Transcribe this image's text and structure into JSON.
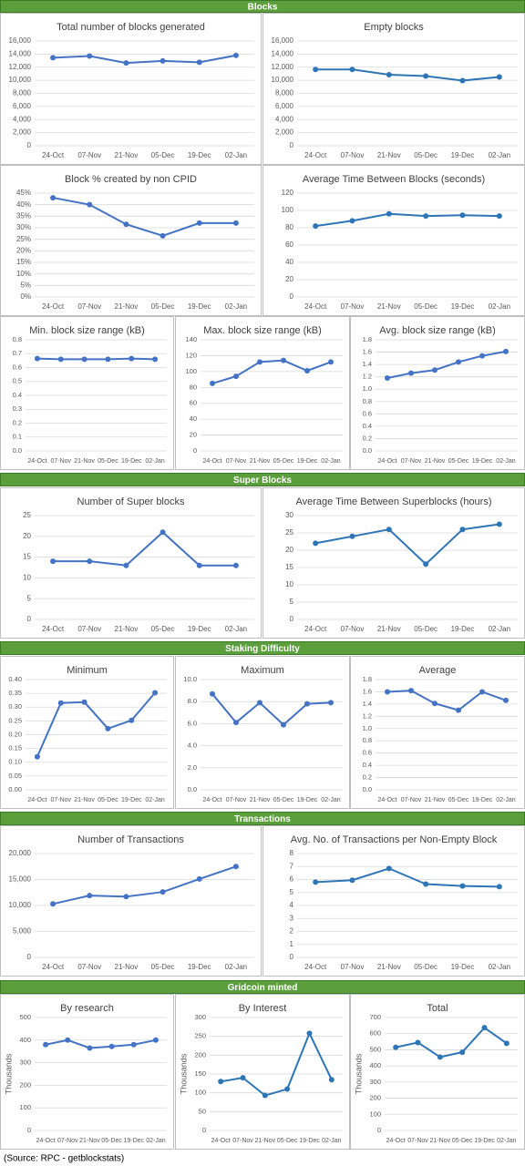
{
  "sections": [
    "Blocks",
    "Super Blocks",
    "Staking Difficulty",
    "Transactions",
    "Gridcoin minted"
  ],
  "source": "(Source: RPC - getblockstats)",
  "chart_data": [
    {
      "type": "line",
      "title": "Total number of blocks generated",
      "categories": [
        "24-Oct",
        "07-Nov",
        "21-Nov",
        "05-Dec",
        "19-Dec",
        "02-Jan"
      ],
      "values": [
        13450,
        13700,
        12650,
        12950,
        12750,
        13800
      ],
      "color": "#4472c4",
      "ylim": [
        0,
        16000
      ],
      "yticks": [
        0,
        {
          "value": 2000,
          "label": "2,000"
        },
        {
          "value": 4000,
          "label": "4,000"
        },
        {
          "value": 6000,
          "label": "6,000"
        },
        {
          "value": 8000,
          "label": "8,000"
        },
        {
          "value": 10000,
          "label": "10,000"
        },
        {
          "value": 12000,
          "label": "12,000"
        },
        {
          "value": 14000,
          "label": "14,000"
        },
        {
          "value": 16000,
          "label": "16,000"
        }
      ],
      "grid": true
    },
    {
      "type": "line",
      "title": "Empty blocks",
      "categories": [
        "24-Oct",
        "07-Nov",
        "21-Nov",
        "05-Dec",
        "19-Dec",
        "02-Jan"
      ],
      "values": [
        11650,
        11650,
        10850,
        10650,
        9950,
        10500
      ],
      "color": "#2e75b6",
      "ylim": [
        0,
        16000
      ],
      "yticks": [
        0,
        {
          "value": 2000,
          "label": "2,000"
        },
        {
          "value": 4000,
          "label": "4,000"
        },
        {
          "value": 6000,
          "label": "6,000"
        },
        {
          "value": 8000,
          "label": "8,000"
        },
        {
          "value": 10000,
          "label": "10,000"
        },
        {
          "value": 12000,
          "label": "12,000"
        },
        {
          "value": 14000,
          "label": "14,000"
        },
        {
          "value": 16000,
          "label": "16,000"
        }
      ],
      "grid": true
    },
    {
      "type": "line",
      "title": "Block % created by non CPID",
      "categories": [
        "24-Oct",
        "07-Nov",
        "21-Nov",
        "05-Dec",
        "19-Dec",
        "02-Jan"
      ],
      "values": [
        43,
        40,
        31.5,
        26.5,
        32,
        32
      ],
      "color": "#4472c4",
      "ylim": [
        0,
        45
      ],
      "yticks": [
        {
          "value": 0,
          "label": "0%"
        },
        {
          "value": 5,
          "label": "5%"
        },
        {
          "value": 10,
          "label": "10%"
        },
        {
          "value": 15,
          "label": "15%"
        },
        {
          "value": 20,
          "label": "20%"
        },
        {
          "value": 25,
          "label": "25%"
        },
        {
          "value": 30,
          "label": "30%"
        },
        {
          "value": 35,
          "label": "35%"
        },
        {
          "value": 40,
          "label": "40%"
        },
        {
          "value": 45,
          "label": "45%"
        }
      ],
      "grid": true
    },
    {
      "type": "line",
      "title": "Average Time Between Blocks (seconds)",
      "categories": [
        "24-Oct",
        "07-Nov",
        "21-Nov",
        "05-Dec",
        "19-Dec",
        "02-Jan"
      ],
      "values": [
        82,
        88,
        96,
        93.5,
        94.5,
        93.5
      ],
      "color": "#2e75b6",
      "ylim": [
        0,
        120
      ],
      "yticks": [
        0,
        20,
        40,
        60,
        80,
        100,
        120
      ],
      "grid": true
    },
    {
      "type": "line",
      "title": "Min. block size range (kB)",
      "categories": [
        "24-Oct",
        "07-Nov",
        "21-Nov",
        "05-Dec",
        "19-Dec",
        "02-Jan"
      ],
      "values": [
        0.665,
        0.66,
        0.66,
        0.66,
        0.665,
        0.66
      ],
      "color": "#4472c4",
      "ylim": [
        0,
        0.8
      ],
      "yticks": [
        {
          "value": 0,
          "label": "0.0"
        },
        0.1,
        0.2,
        0.3,
        0.4,
        0.5,
        0.6,
        0.7,
        0.8
      ],
      "grid": true
    },
    {
      "type": "line",
      "title": "Max. block size range (kB)",
      "categories": [
        "24-Oct",
        "07-Nov",
        "21-Nov",
        "05-Dec",
        "19-Dec",
        "02-Jan"
      ],
      "values": [
        85,
        94,
        112,
        114,
        101,
        112
      ],
      "color": "#4472c4",
      "ylim": [
        0,
        140
      ],
      "yticks": [
        0,
        20,
        40,
        60,
        80,
        100,
        120,
        140
      ],
      "grid": true
    },
    {
      "type": "line",
      "title": "Avg. block size range (kB)",
      "categories": [
        "24-Oct",
        "07-Nov",
        "21-Nov",
        "05-Dec",
        "19-Dec",
        "02-Jan"
      ],
      "values": [
        1.18,
        1.26,
        1.31,
        1.44,
        1.54,
        1.61
      ],
      "color": "#4472c4",
      "ylim": [
        0,
        1.8
      ],
      "yticks": [
        {
          "value": 0,
          "label": "0.0"
        },
        0.2,
        0.4,
        0.6,
        0.8,
        {
          "value": 1,
          "label": "1.0"
        },
        1.2,
        1.4,
        1.6,
        1.8
      ],
      "grid": true
    },
    {
      "type": "line",
      "title": "Number of Super blocks",
      "categories": [
        "24-Oct",
        "07-Nov",
        "21-Nov",
        "05-Dec",
        "19-Dec",
        "02-Jan"
      ],
      "values": [
        14,
        14,
        13,
        21,
        13,
        13
      ],
      "color": "#4472c4",
      "ylim": [
        0,
        25
      ],
      "yticks": [
        0,
        5,
        10,
        15,
        20,
        25
      ],
      "grid": true
    },
    {
      "type": "line",
      "title": "Average Time Between Superblocks (hours)",
      "categories": [
        "24-Oct",
        "07-Nov",
        "21-Nov",
        "05-Dec",
        "19-Dec",
        "02-Jan"
      ],
      "values": [
        22,
        24,
        26,
        16,
        26,
        27.5
      ],
      "color": "#2e75b6",
      "ylim": [
        0,
        30
      ],
      "yticks": [
        0,
        5,
        10,
        15,
        20,
        25,
        30
      ],
      "grid": true
    },
    {
      "type": "line",
      "title": "Minimum",
      "categories": [
        "24-Oct",
        "07-Nov",
        "21-Nov",
        "05-Dec",
        "19-Dec",
        "02-Jan"
      ],
      "values": [
        0.12,
        0.315,
        0.318,
        0.222,
        0.252,
        0.352
      ],
      "color": "#4472c4",
      "ylim": [
        0,
        0.4
      ],
      "yticks": [
        {
          "value": 0,
          "label": "0.00"
        },
        0.05,
        {
          "value": 0.1,
          "label": "0.10"
        },
        0.15,
        {
          "value": 0.2,
          "label": "0.20"
        },
        0.25,
        {
          "value": 0.3,
          "label": "0.30"
        },
        0.35,
        {
          "value": 0.4,
          "label": "0.40"
        }
      ],
      "grid": true
    },
    {
      "type": "line",
      "title": "Maximum",
      "categories": [
        "24-Oct",
        "07-Nov",
        "21-Nov",
        "05-Dec",
        "19-Dec",
        "02-Jan"
      ],
      "values": [
        8.7,
        6.1,
        7.9,
        5.9,
        7.8,
        7.9
      ],
      "color": "#4472c4",
      "ylim": [
        0,
        10
      ],
      "yticks": [
        {
          "value": 0,
          "label": "0.0"
        },
        {
          "value": 2,
          "label": "2.0"
        },
        {
          "value": 4,
          "label": "4.0"
        },
        {
          "value": 6,
          "label": "6.0"
        },
        {
          "value": 8,
          "label": "8.0"
        },
        {
          "value": 10,
          "label": "10.0"
        }
      ],
      "grid": true
    },
    {
      "type": "line",
      "title": "Average",
      "categories": [
        "24-Oct",
        "07-Nov",
        "21-Nov",
        "05-Dec",
        "19-Dec",
        "02-Jan"
      ],
      "values": [
        1.6,
        1.62,
        1.41,
        1.3,
        1.6,
        1.46
      ],
      "color": "#4472c4",
      "ylim": [
        0,
        1.8
      ],
      "yticks": [
        {
          "value": 0,
          "label": "0.0"
        },
        0.2,
        0.4,
        0.6,
        0.8,
        {
          "value": 1,
          "label": "1.0"
        },
        1.2,
        1.4,
        1.6,
        1.8
      ],
      "grid": true
    },
    {
      "type": "line",
      "title": "Number of Transactions",
      "categories": [
        "24-Oct",
        "07-Nov",
        "21-Nov",
        "05-Dec",
        "19-Dec",
        "02-Jan"
      ],
      "values": [
        10300,
        11900,
        11700,
        12600,
        15100,
        17500
      ],
      "color": "#4472c4",
      "ylim": [
        0,
        20000
      ],
      "yticks": [
        0,
        {
          "value": 5000,
          "label": "5,000"
        },
        {
          "value": 10000,
          "label": "10,000"
        },
        {
          "value": 15000,
          "label": "15,000"
        },
        {
          "value": 20000,
          "label": "20,000"
        }
      ],
      "grid": true
    },
    {
      "type": "line",
      "title": "Avg. No. of Transactions per Non-Empty Block",
      "categories": [
        "24-Oct",
        "07-Nov",
        "21-Nov",
        "05-Dec",
        "19-Dec",
        "02-Jan"
      ],
      "values": [
        5.8,
        5.95,
        6.85,
        5.65,
        5.5,
        5.45
      ],
      "color": "#2e75b6",
      "ylim": [
        0,
        8
      ],
      "yticks": [
        0,
        1,
        2,
        3,
        4,
        5,
        6,
        7,
        8
      ],
      "grid": true
    },
    {
      "type": "line",
      "title": "By research",
      "y_label": "Thousands",
      "categories": [
        "24-Oct",
        "07-Nov",
        "21-Nov",
        "05-Dec",
        "19-Dec",
        "02-Jan"
      ],
      "values": [
        380,
        400,
        365,
        372,
        380,
        400
      ],
      "color": "#4472c4",
      "ylim": [
        0,
        500
      ],
      "yticks": [
        0,
        100,
        200,
        300,
        400,
        500
      ],
      "grid": true
    },
    {
      "type": "line",
      "title": "By Interest",
      "y_label": "Thousands",
      "categories": [
        "24-Oct",
        "07-Nov",
        "21-Nov",
        "05-Dec",
        "19-Dec",
        "02-Jan"
      ],
      "values": [
        130,
        140,
        93,
        110,
        258,
        135
      ],
      "color": "#2e75b6",
      "ylim": [
        0,
        300
      ],
      "yticks": [
        0,
        50,
        100,
        150,
        200,
        250,
        300
      ],
      "grid": true
    },
    {
      "type": "line",
      "title": "Total",
      "y_label": "Thousands",
      "categories": [
        "24-Oct",
        "07-Nov",
        "21-Nov",
        "05-Dec",
        "19-Dec",
        "02-Jan"
      ],
      "values": [
        515,
        545,
        455,
        485,
        637,
        540
      ],
      "color": "#2e75b6",
      "ylim": [
        0,
        700
      ],
      "yticks": [
        0,
        100,
        200,
        300,
        400,
        500,
        600,
        700
      ],
      "grid": true
    }
  ]
}
